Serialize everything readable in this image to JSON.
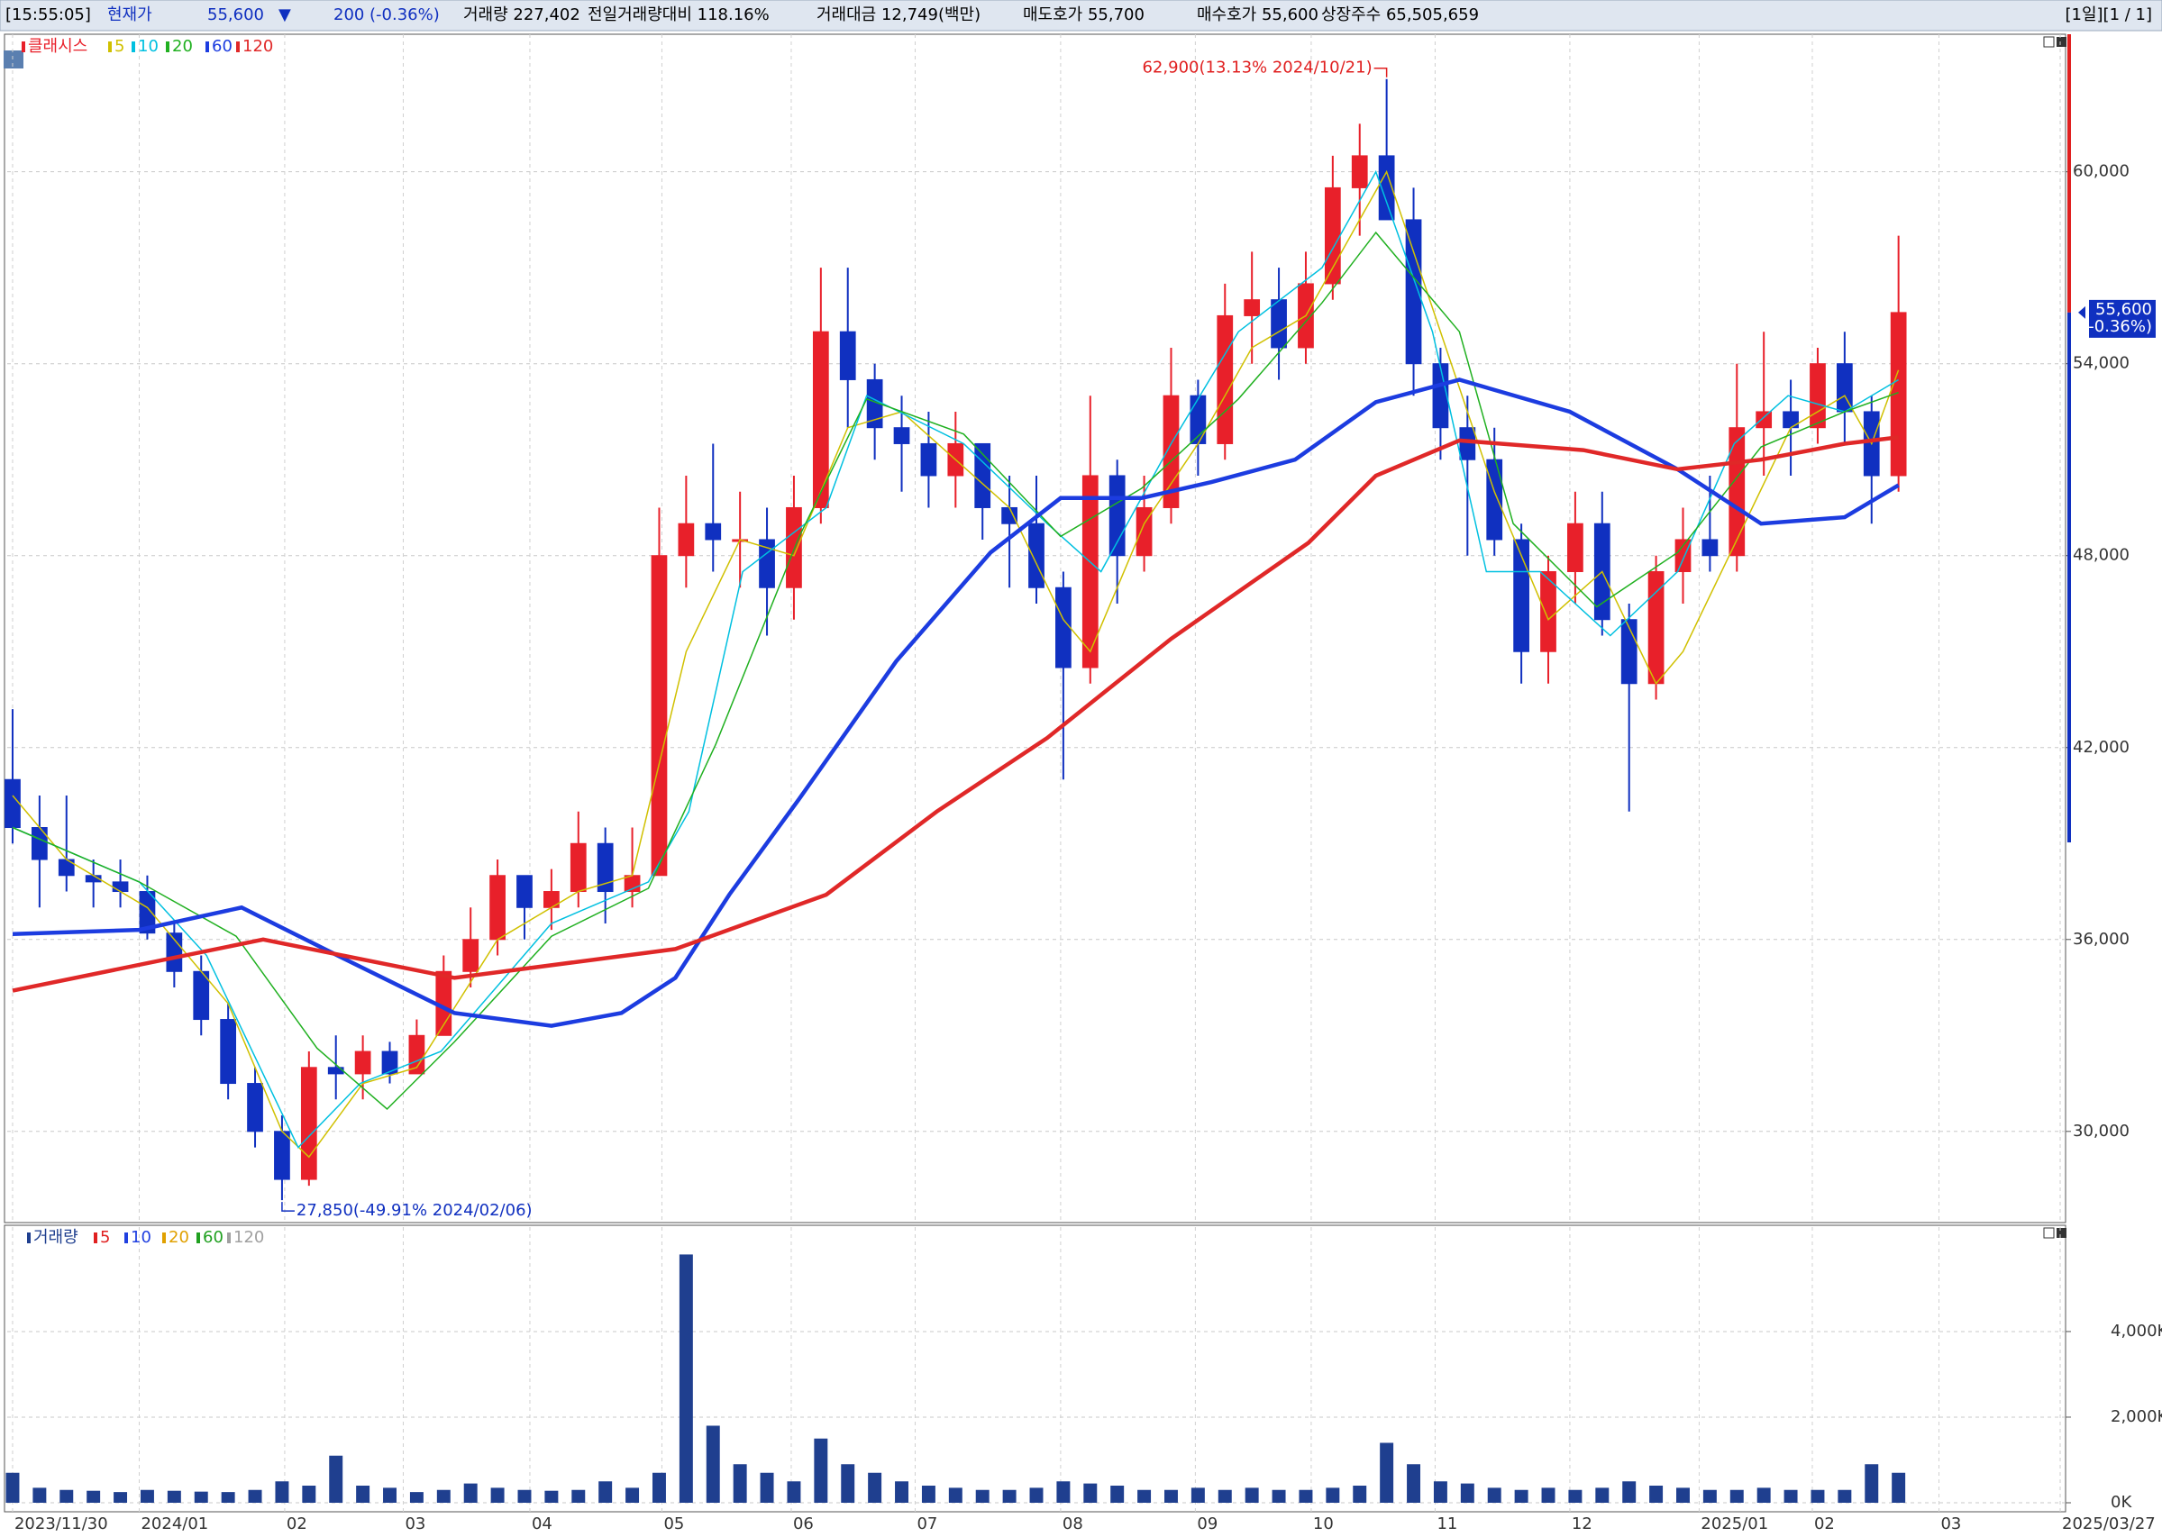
{
  "header": {
    "items": [
      {
        "text": "[15:55:05]",
        "color": "#000000"
      },
      {
        "text": "현재가",
        "color": "#1030c0"
      },
      {
        "text": "55,600",
        "color": "#1030c0"
      },
      {
        "text": "▼",
        "color": "#1030c0"
      },
      {
        "text": "200",
        "color": "#1030c0"
      },
      {
        "text": "(-0.36%)",
        "color": "#1030c0"
      },
      {
        "text": "거래량 227,402",
        "color": "#000000"
      },
      {
        "text": "전일거래량대비 118.16%",
        "color": "#000000"
      },
      {
        "text": "거래대금 12,749(백만)",
        "color": "#000000"
      },
      {
        "text": "매도호가 55,700",
        "color": "#000000"
      },
      {
        "text": "매수호가 55,600",
        "color": "#000000"
      },
      {
        "text": "상장주수 65,505,659",
        "color": "#000000"
      }
    ],
    "right": "[1일][1 / 1]"
  },
  "chart_data": {
    "type": "candlestick",
    "name": "클래시스",
    "color_up": "#e8202a",
    "color_down": "#1030c0",
    "grid": true,
    "open": [
      41000,
      39500,
      38500,
      38000,
      37800,
      37500,
      36200,
      35000,
      33500,
      31500,
      30000,
      28500,
      32000,
      31800,
      32500,
      31800,
      33000,
      35000,
      36000,
      38000,
      37000,
      37500,
      39000,
      37500,
      38000,
      48000,
      49000,
      48500,
      48500,
      47000,
      49500,
      55000,
      53500,
      52000,
      51500,
      50500,
      51500,
      49500,
      49000,
      47000,
      44500,
      50500,
      48000,
      49500,
      53000,
      51500,
      55500,
      56000,
      54500,
      56500,
      59500,
      60500,
      58500,
      54000,
      52000,
      51000,
      48500,
      45000,
      47500,
      49000,
      46000,
      44000,
      47500,
      48500,
      48000,
      52000,
      52500,
      52000,
      54000,
      52500,
      50500
    ],
    "high": [
      43200,
      40500,
      40500,
      38500,
      38500,
      38000,
      36500,
      35500,
      34000,
      32000,
      30500,
      32500,
      33000,
      33000,
      32800,
      33500,
      35500,
      37000,
      38500,
      38000,
      38200,
      40000,
      39500,
      39500,
      49500,
      50500,
      51500,
      50000,
      49500,
      50500,
      57000,
      57000,
      54000,
      53000,
      52500,
      52500,
      51500,
      50500,
      50500,
      47500,
      53000,
      51000,
      50500,
      54500,
      53500,
      56500,
      57500,
      57000,
      57500,
      60500,
      61500,
      62900,
      59500,
      54500,
      53000,
      52000,
      49000,
      48000,
      50000,
      50000,
      46500,
      48000,
      49500,
      50500,
      54000,
      55000,
      53500,
      54500,
      55000,
      53000,
      58000
    ],
    "low": [
      39000,
      37000,
      37500,
      37000,
      37000,
      36000,
      34500,
      33000,
      31000,
      29500,
      27850,
      28300,
      31000,
      31000,
      31500,
      31800,
      33000,
      34500,
      35500,
      36000,
      36300,
      37000,
      36500,
      37000,
      38000,
      47000,
      47500,
      47000,
      45500,
      46000,
      49000,
      52000,
      51000,
      50000,
      49500,
      49500,
      48500,
      47000,
      46500,
      41000,
      44000,
      46500,
      47500,
      49000,
      50500,
      51000,
      54000,
      53500,
      54000,
      56000,
      58000,
      58500,
      53000,
      51000,
      48000,
      48000,
      44000,
      44000,
      46500,
      45500,
      40000,
      43500,
      46500,
      47500,
      47500,
      50500,
      50500,
      51500,
      51500,
      49000,
      50000
    ],
    "close": [
      39500,
      38500,
      38000,
      37800,
      37500,
      36200,
      35000,
      33500,
      31500,
      30000,
      28500,
      32000,
      31800,
      32500,
      31800,
      33000,
      35000,
      36000,
      38000,
      37000,
      37500,
      39000,
      37500,
      38000,
      48000,
      49000,
      48500,
      48500,
      47000,
      49500,
      55000,
      53500,
      52000,
      51500,
      50500,
      51500,
      49500,
      49000,
      47000,
      44500,
      50500,
      48000,
      49500,
      53000,
      51500,
      55500,
      56000,
      54500,
      56500,
      59500,
      60500,
      58500,
      54000,
      52000,
      51000,
      48500,
      45000,
      47500,
      49000,
      46000,
      44000,
      47500,
      48500,
      48000,
      52000,
      52500,
      52000,
      54000,
      52500,
      50500,
      55600
    ],
    "xlim": [
      -0.2,
      76.2
    ],
    "ylim": [
      27150,
      64300
    ],
    "yticks": [
      {
        "value": 30000,
        "label": "30,000"
      },
      {
        "value": 36000,
        "label": "36,000"
      },
      {
        "value": 42000,
        "label": "42,000"
      },
      {
        "value": 48000,
        "label": "48,000"
      },
      {
        "value": 54000,
        "label": "54,000"
      },
      {
        "value": 60000,
        "label": "60,000"
      }
    ],
    "xticks": [
      {
        "value": 0,
        "label": "2023/11/30"
      },
      {
        "value": 4.7,
        "label": "2024/01"
      },
      {
        "value": 10.1,
        "label": "02"
      },
      {
        "value": 14.5,
        "label": "03"
      },
      {
        "value": 19.2,
        "label": "04"
      },
      {
        "value": 24.1,
        "label": "05"
      },
      {
        "value": 28.9,
        "label": "06"
      },
      {
        "value": 33.5,
        "label": "07"
      },
      {
        "value": 38.9,
        "label": "08"
      },
      {
        "value": 43.9,
        "label": "09"
      },
      {
        "value": 48.2,
        "label": "10"
      },
      {
        "value": 52.8,
        "label": "11"
      },
      {
        "value": 57.8,
        "label": "12"
      },
      {
        "value": 62.6,
        "label": "2025/01"
      },
      {
        "value": 66.8,
        "label": "02"
      },
      {
        "value": 71.5,
        "label": "03"
      },
      {
        "value": 76,
        "label": "2025/03/27"
      }
    ],
    "series": [
      {
        "name": "5",
        "color": "#d0c000",
        "width": 1.5,
        "x": [
          0,
          2,
          5,
          8,
          10,
          11,
          13,
          15,
          18,
          21,
          23,
          25,
          27,
          29,
          31,
          33,
          35,
          37,
          39,
          40,
          42,
          44,
          46,
          48,
          50,
          51,
          53,
          55,
          57,
          59,
          61,
          62,
          64,
          66,
          68,
          69,
          70
        ],
        "values": [
          40500,
          38500,
          37000,
          34000,
          30000,
          29200,
          31500,
          32000,
          36000,
          37500,
          38000,
          45000,
          48500,
          48000,
          52000,
          52500,
          51000,
          49500,
          46000,
          45000,
          49000,
          51500,
          54500,
          55500,
          58500,
          60000,
          55000,
          50000,
          46000,
          47500,
          44000,
          45000,
          48500,
          52000,
          53000,
          51500,
          53800
        ]
      },
      {
        "name": "10",
        "color": "#00c0e0",
        "width": 1.5,
        "x": [
          0,
          4.7,
          7.2,
          10.6,
          12.9,
          15.9,
          20,
          23.6,
          25.1,
          27.1,
          30.2,
          31.7,
          35.3,
          38.4,
          40.4,
          43,
          45.5,
          48.6,
          50.6,
          52.7,
          54.7,
          56.7,
          59.3,
          61.8,
          63.9,
          65.9,
          68,
          70
        ],
        "values": [
          39500,
          37800,
          35500,
          29500,
          31500,
          32500,
          36500,
          37800,
          40000,
          47500,
          49500,
          53000,
          51500,
          49000,
          47500,
          51500,
          55000,
          57000,
          60000,
          55000,
          47500,
          47500,
          45500,
          47500,
          51500,
          53000,
          52500,
          53500
        ]
      },
      {
        "name": "20",
        "color": "#20b020",
        "width": 1.5,
        "x": [
          0,
          4.7,
          8.3,
          11.3,
          13.9,
          16.4,
          20,
          23.6,
          26.1,
          29.2,
          31.7,
          35.3,
          38.9,
          41.9,
          45.5,
          48.6,
          50.6,
          53.7,
          55.7,
          58.8,
          61.8,
          64.9,
          68,
          70
        ],
        "values": [
          39500,
          37800,
          36100,
          32600,
          30700,
          32800,
          36100,
          37600,
          42100,
          48600,
          52900,
          51800,
          48600,
          50100,
          52900,
          55900,
          58100,
          55000,
          49000,
          46400,
          48100,
          51400,
          52500,
          53100
        ]
      },
      {
        "name": "60",
        "color": "#1c3ce0",
        "width": 4.5,
        "x": [
          0,
          4.7,
          8.5,
          12.3,
          16.4,
          20,
          22.6,
          24.6,
          26.6,
          29.2,
          32.8,
          36.3,
          38.9,
          41.9,
          44.5,
          47.6,
          50.6,
          53.7,
          57.8,
          61.8,
          64.9,
          68,
          70
        ],
        "values": [
          36170,
          36300,
          37000,
          35400,
          33700,
          33300,
          33700,
          34800,
          37400,
          40400,
          44700,
          48100,
          49800,
          49800,
          50300,
          51000,
          52800,
          53500,
          52500,
          50700,
          49000,
          49200,
          50200
        ]
      },
      {
        "name": "120",
        "color": "#e02828",
        "width": 4.5,
        "x": [
          0,
          9.3,
          16.4,
          24.6,
          30.2,
          34.3,
          38.4,
          43,
          48.1,
          50.6,
          53.7,
          58.3,
          61.8,
          64.9,
          68,
          70
        ],
        "values": [
          34400,
          36000,
          34800,
          35700,
          37400,
          40000,
          42300,
          45400,
          48400,
          50500,
          51600,
          51300,
          50700,
          51000,
          51500,
          51700
        ]
      }
    ],
    "annotations": [
      {
        "text": "62,900(13.13% 2024/10/21)",
        "x": 51,
        "y": 62900,
        "color": "#e02020"
      },
      {
        "text": "27,850(-49.91% 2024/02/06)",
        "x": 10,
        "y": 27850,
        "color": "#1030c0"
      }
    ],
    "current": {
      "value": 55600,
      "label": "55,600",
      "change": "(-0.36%)"
    },
    "volume": {
      "name": "거래량",
      "color": "#1f3f8f",
      "ylim": [
        0,
        6440
      ],
      "yticks": [
        {
          "value": 0,
          "label": "0K"
        },
        {
          "value": 2000,
          "label": "2,000K"
        },
        {
          "value": 4000,
          "label": "4,000K"
        }
      ],
      "values": [
        700,
        350,
        300,
        280,
        250,
        300,
        280,
        260,
        250,
        300,
        500,
        400,
        1100,
        400,
        350,
        250,
        300,
        450,
        350,
        300,
        280,
        300,
        500,
        350,
        700,
        5800,
        1800,
        900,
        700,
        500,
        1500,
        900,
        700,
        500,
        400,
        350,
        300,
        300,
        350,
        500,
        450,
        400,
        300,
        300,
        350,
        300,
        350,
        300,
        300,
        350,
        400,
        1400,
        900,
        500,
        450,
        350,
        300,
        350,
        300,
        350,
        500,
        400,
        350,
        300,
        300,
        350,
        300,
        300,
        300,
        900,
        700
      ],
      "ma_legend": [
        {
          "name": "5",
          "color": "#e02020"
        },
        {
          "name": "10",
          "color": "#2040e0"
        },
        {
          "name": "20",
          "color": "#e0a000"
        },
        {
          "name": "60",
          "color": "#20a020"
        },
        {
          "name": "120",
          "color": "#a0a0a0"
        }
      ]
    }
  }
}
